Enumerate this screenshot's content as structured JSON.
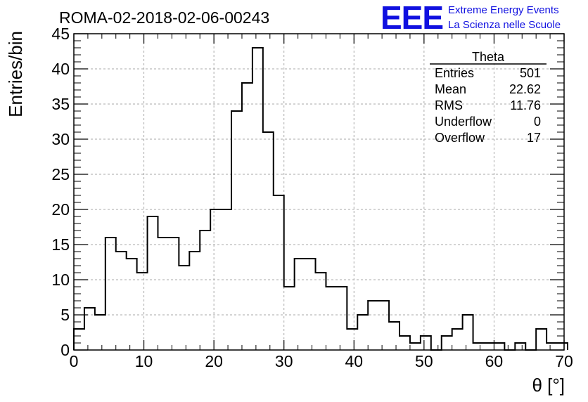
{
  "chart_data": {
    "type": "bar",
    "title": "ROMA-02-2018-02-06-00243",
    "xlabel": "θ [°]",
    "ylabel": "Entries/bin",
    "xlim": [
      0,
      70
    ],
    "ylim": [
      0,
      45
    ],
    "x_ticks": [
      "0",
      "10",
      "20",
      "30",
      "40",
      "50",
      "60",
      "70"
    ],
    "y_ticks": [
      "0",
      "5",
      "10",
      "15",
      "20",
      "25",
      "30",
      "35",
      "40",
      "45"
    ],
    "grid": true,
    "bin_width": 1.5,
    "bin_edges_start": 0,
    "values": [
      3,
      6,
      5,
      16,
      14,
      13,
      11,
      19,
      16,
      16,
      12,
      14,
      17,
      20,
      20,
      34,
      38,
      43,
      31,
      22,
      9,
      13,
      13,
      11,
      9,
      9,
      3,
      5,
      7,
      7,
      4,
      2,
      1,
      2,
      0,
      2,
      3,
      5,
      1,
      1,
      1,
      0,
      1,
      0,
      3,
      1,
      1
    ],
    "stats_box": {
      "name": "Theta",
      "rows": [
        {
          "label": "Entries",
          "value": "501"
        },
        {
          "label": "Mean",
          "value": "22.62"
        },
        {
          "label": "RMS",
          "value": "11.76"
        },
        {
          "label": "Underflow",
          "value": "0"
        },
        {
          "label": "Overflow",
          "value": "17"
        }
      ]
    }
  },
  "logo": {
    "text": "EEE",
    "line1": "Extreme Energy Events",
    "line2": "La Scienza nelle Scuole",
    "color": "#1010e0"
  }
}
